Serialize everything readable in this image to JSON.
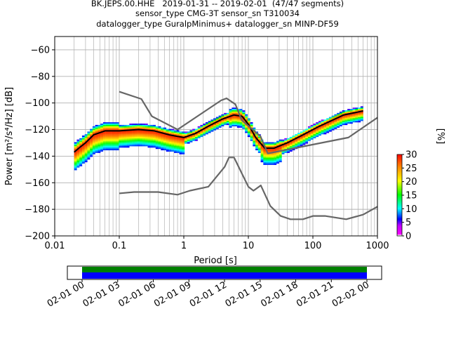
{
  "title": {
    "line1": "BK.JEPS.00.HHE   2019-01-31 -- 2019-02-01  (47/47 segments)",
    "line2": "sensor_type CMG-3T sensor_sn T310034",
    "line3": "datalogger_type GuralpMinimus+ datalogger_sn MINP-DF59"
  },
  "chart_data": {
    "type": "heatmap",
    "xlabel": "Period [s]",
    "ylabel": "Power [m²/s⁴/Hz] [dB]",
    "x_scale": "log",
    "xlim": [
      0.01,
      1000
    ],
    "ylim": [
      -200,
      -50
    ],
    "x_ticks": [
      0.01,
      0.1,
      1,
      10,
      100,
      1000
    ],
    "x_tick_labels": [
      "0.01",
      "0.1",
      "1",
      "10",
      "100",
      "1000"
    ],
    "y_ticks": [
      -200,
      -180,
      -160,
      -140,
      -120,
      -100,
      -80,
      -60
    ],
    "y_tick_labels": [
      "−200",
      "−180",
      "−160",
      "−140",
      "−120",
      "−100",
      "−80",
      "−60"
    ],
    "grid": true,
    "colorbar": {
      "label": "[%]",
      "range": [
        0,
        30
      ],
      "ticks": [
        0,
        5,
        10,
        15,
        20,
        25,
        30
      ],
      "tick_labels": [
        "0",
        "5",
        "10",
        "15",
        "20",
        "25",
        "30"
      ],
      "colormap": [
        "#ffffff",
        "#ff00ff",
        "#0000ff",
        "#00ffff",
        "#00ff00",
        "#ffff00",
        "#ff0000"
      ]
    },
    "series": [
      {
        "role": "mean",
        "color": "#000000",
        "points": [
          [
            0.02,
            -137
          ],
          [
            0.025,
            -133
          ],
          [
            0.03,
            -130
          ],
          [
            0.04,
            -124
          ],
          [
            0.06,
            -121
          ],
          [
            0.1,
            -121
          ],
          [
            0.2,
            -120
          ],
          [
            0.35,
            -121
          ],
          [
            0.6,
            -124
          ],
          [
            1.0,
            -126
          ],
          [
            1.5,
            -123
          ],
          [
            2.5,
            -117
          ],
          [
            4,
            -112
          ],
          [
            6,
            -109
          ],
          [
            8,
            -110
          ],
          [
            10,
            -116
          ],
          [
            13,
            -126
          ],
          [
            18,
            -134
          ],
          [
            25,
            -134
          ],
          [
            40,
            -130
          ],
          [
            70,
            -124
          ],
          [
            120,
            -118
          ],
          [
            200,
            -113
          ],
          [
            300,
            -109
          ],
          [
            600,
            -106
          ]
        ]
      },
      {
        "role": "nhnm",
        "color": "#666666",
        "points": [
          [
            0.1,
            -91.5
          ],
          [
            0.22,
            -97
          ],
          [
            0.32,
            -110
          ],
          [
            0.8,
            -120
          ],
          [
            3.8,
            -98
          ],
          [
            4.6,
            -96.5
          ],
          [
            6.3,
            -101
          ],
          [
            7.9,
            -113
          ],
          [
            15.4,
            -125
          ],
          [
            20,
            -138
          ],
          [
            354.8,
            -126
          ],
          [
            1000,
            -111
          ]
        ]
      },
      {
        "role": "nlnm",
        "color": "#666666",
        "points": [
          [
            0.1,
            -168
          ],
          [
            0.17,
            -167
          ],
          [
            0.4,
            -167
          ],
          [
            0.8,
            -169
          ],
          [
            1.24,
            -166
          ],
          [
            2.4,
            -163
          ],
          [
            4.3,
            -148
          ],
          [
            5.0,
            -141
          ],
          [
            6.0,
            -141
          ],
          [
            10,
            -163
          ],
          [
            12,
            -166
          ],
          [
            15.6,
            -162
          ],
          [
            21.9,
            -177.5
          ],
          [
            31.6,
            -185
          ],
          [
            45,
            -187.5
          ],
          [
            70,
            -187.5
          ],
          [
            101,
            -185
          ],
          [
            154,
            -185
          ],
          [
            328,
            -187.5
          ],
          [
            600,
            -184
          ],
          [
            1000,
            -178
          ]
        ]
      }
    ]
  },
  "time_axis": {
    "tick_labels": [
      "02-01 00",
      "02-01 03",
      "02-01 06",
      "02-01 09",
      "02-01 12",
      "02-01 15",
      "02-01 18",
      "02-01 21",
      "02-02 00"
    ],
    "coverage_color": "#008000",
    "data_color": "#0000ff"
  }
}
